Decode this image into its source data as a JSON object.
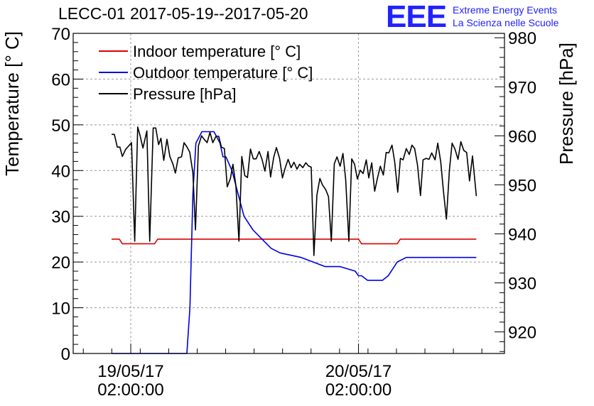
{
  "brand": {
    "logo": "EEE",
    "line1": "Extreme Energy Events",
    "line2": "La Scienza nelle Scuole"
  },
  "colors": {
    "indoor": "#dd0000",
    "outdoor": "#0000dd",
    "pressure": "#000000",
    "brand": "#2222ff",
    "grid": "#999999"
  },
  "chart_data": {
    "type": "line",
    "title": "LECC-01 2017-05-19--2017-05-20",
    "ylabel": "Temperature [° C]",
    "y2label": "Pressure [hPa]",
    "ylim": [
      0,
      70
    ],
    "y2lim": [
      915.6,
      980.9
    ],
    "y_ticks": [
      0,
      10,
      20,
      30,
      40,
      50,
      60,
      70
    ],
    "y2_ticks": [
      920,
      930,
      940,
      950,
      960,
      970,
      980
    ],
    "xlim": [
      "2017-05-18 19:56",
      "2017-05-20 17:23"
    ],
    "x_ticks": [
      {
        "t": "2017-05-19 02:00",
        "line1": "19/05/17",
        "line2": "02:00:00"
      },
      {
        "t": "2017-05-20 02:00",
        "line1": "20/05/17",
        "line2": "02:00:00"
      }
    ],
    "grid": true,
    "legend": "top-left",
    "series": [
      {
        "name": "Indoor temperature [° C]",
        "axis": "left",
        "color": "#dd0000",
        "x": [
          "2017-05-18 23:59",
          "2017-05-19 00:48",
          "2017-05-19 01:07",
          "2017-05-19 04:31",
          "2017-05-19 04:50",
          "2017-05-20 02:00",
          "2017-05-20 02:19",
          "2017-05-20 06:05",
          "2017-05-20 06:24",
          "2017-05-20 14:25"
        ],
        "y": [
          25,
          25,
          24,
          24,
          25,
          25,
          24,
          24,
          25,
          25
        ]
      },
      {
        "name": "Outdoor temperature [° C]",
        "axis": "left",
        "color": "#0000dd",
        "x": [
          "2017-05-18 23:59",
          "2017-05-19 07:55",
          "2017-05-19 08:14",
          "2017-05-19 08:33",
          "2017-05-19 08:52",
          "2017-05-19 09:30",
          "2017-05-19 10:08",
          "2017-05-19 10:46",
          "2017-05-19 11:24",
          "2017-05-19 11:43",
          "2017-05-19 12:02",
          "2017-05-19 12:40",
          "2017-05-19 13:18",
          "2017-05-19 13:56",
          "2017-05-19 14:53",
          "2017-05-19 15:50",
          "2017-05-19 16:47",
          "2017-05-19 17:44",
          "2017-05-19 19:57",
          "2017-05-19 21:13",
          "2017-05-19 22:29",
          "2017-05-20 00:04",
          "2017-05-20 01:39",
          "2017-05-20 02:00",
          "2017-05-20 02:19",
          "2017-05-20 02:57",
          "2017-05-20 04:32",
          "2017-05-20 05:08",
          "2017-05-20 05:46",
          "2017-05-20 06:05",
          "2017-05-20 07:02",
          "2017-05-20 14:25"
        ],
        "y": [
          0,
          0,
          10,
          35,
          46,
          48.5,
          48.5,
          48.5,
          46,
          43,
          43,
          40,
          35,
          30,
          27,
          25,
          23,
          22,
          21,
          20,
          19,
          19,
          18,
          17,
          17,
          16,
          16,
          17,
          19,
          20,
          21,
          21
        ]
      },
      {
        "name": "Pressure [hPa]",
        "axis": "right",
        "color": "#000000",
        "x": [
          "2017-05-18 23:59",
          "2017-05-19 00:16",
          "2017-05-19 00:35",
          "2017-05-19 00:51",
          "2017-05-19 01:07",
          "2017-05-19 01:27",
          "2017-05-19 02:05",
          "2017-05-19 02:25",
          "2017-05-19 02:44",
          "2017-05-19 02:59",
          "2017-05-19 03:17",
          "2017-05-19 03:42",
          "2017-05-19 04:00",
          "2017-05-19 04:22",
          "2017-05-19 04:38",
          "2017-05-19 04:56",
          "2017-05-19 05:11",
          "2017-05-19 05:29",
          "2017-05-19 05:49",
          "2017-05-19 06:07",
          "2017-05-19 06:27",
          "2017-05-19 06:42",
          "2017-05-19 07:00",
          "2017-05-19 07:21",
          "2017-05-19 07:37",
          "2017-05-19 07:54",
          "2017-05-19 08:13",
          "2017-05-19 08:33",
          "2017-05-19 08:49",
          "2017-05-19 09:08",
          "2017-05-19 09:28",
          "2017-05-19 09:44",
          "2017-05-19 10:03",
          "2017-05-19 10:21",
          "2017-05-19 10:39",
          "2017-05-19 10:59",
          "2017-05-19 11:16",
          "2017-05-19 11:33",
          "2017-05-19 11:52",
          "2017-05-19 12:10",
          "2017-05-19 12:30",
          "2017-05-19 12:46",
          "2017-05-19 13:05",
          "2017-05-19 13:24",
          "2017-05-19 13:42",
          "2017-05-19 14:01",
          "2017-05-19 14:18",
          "2017-05-19 14:37",
          "2017-05-19 14:55",
          "2017-05-19 15:13",
          "2017-05-19 15:32",
          "2017-05-19 15:50",
          "2017-05-19 16:08",
          "2017-05-19 16:28",
          "2017-05-19 16:44",
          "2017-05-19 17:04",
          "2017-05-19 17:21",
          "2017-05-19 17:41",
          "2017-05-19 17:59",
          "2017-05-19 18:17",
          "2017-05-19 18:35",
          "2017-05-19 18:54",
          "2017-05-19 19:12",
          "2017-05-19 19:31",
          "2017-05-19 19:48",
          "2017-05-19 20:08",
          "2017-05-19 20:27",
          "2017-05-19 20:42",
          "2017-05-19 21:01",
          "2017-05-19 21:18",
          "2017-05-19 21:37",
          "2017-05-19 21:56",
          "2017-05-19 22:12",
          "2017-05-19 22:33",
          "2017-05-19 22:50",
          "2017-05-19 23:08",
          "2017-05-19 23:27",
          "2017-05-19 23:44",
          "2017-05-20 00:04",
          "2017-05-20 00:22",
          "2017-05-20 00:39",
          "2017-05-20 00:59",
          "2017-05-20 01:17",
          "2017-05-20 01:35",
          "2017-05-20 01:53",
          "2017-05-20 02:11",
          "2017-05-20 02:29",
          "2017-05-20 02:49",
          "2017-05-20 03:05",
          "2017-05-20 03:24",
          "2017-05-20 03:42",
          "2017-05-20 04:00",
          "2017-05-20 04:18",
          "2017-05-20 04:37",
          "2017-05-20 04:55",
          "2017-05-20 05:11",
          "2017-05-20 05:32",
          "2017-05-20 05:49",
          "2017-05-20 06:08",
          "2017-05-20 06:25",
          "2017-05-20 06:42",
          "2017-05-20 07:02",
          "2017-05-20 07:21",
          "2017-05-20 07:38",
          "2017-05-20 07:55",
          "2017-05-20 08:13",
          "2017-05-20 08:32",
          "2017-05-20 08:48",
          "2017-05-20 09:08",
          "2017-05-20 09:26",
          "2017-05-20 09:43",
          "2017-05-20 10:04",
          "2017-05-20 10:21",
          "2017-05-20 10:40",
          "2017-05-20 10:57",
          "2017-05-20 11:16",
          "2017-05-20 11:35",
          "2017-05-20 11:52",
          "2017-05-20 12:10",
          "2017-05-20 12:29",
          "2017-05-20 12:47",
          "2017-05-20 13:06",
          "2017-05-20 13:24",
          "2017-05-20 13:42",
          "2017-05-20 14:01",
          "2017-05-20 14:25"
        ],
        "y": [
          960.3,
          960.3,
          957.7,
          957.7,
          955.8,
          957.2,
          958.6,
          938.5,
          961.8,
          960.0,
          957.5,
          961.0,
          938.5,
          961.6,
          961.6,
          958.2,
          959.5,
          955.0,
          959.3,
          955.8,
          954.2,
          952.4,
          955.5,
          955.7,
          958.6,
          957.8,
          956.7,
          952.4,
          940.8,
          958.0,
          960.0,
          959.3,
          958.6,
          960.7,
          958.6,
          959.9,
          959.9,
          957.7,
          957.4,
          949.6,
          951.3,
          954.2,
          949.8,
          938.5,
          955.8,
          951.9,
          951.5,
          957.3,
          955.3,
          955.3,
          956.8,
          955.2,
          952.8,
          956.8,
          951.6,
          955.6,
          957.6,
          955.4,
          951.4,
          953.5,
          955.2,
          953.5,
          954.6,
          953.2,
          954.2,
          953.5,
          954.5,
          953.9,
          953.6,
          935.6,
          947.9,
          951.3,
          950.0,
          949.0,
          947.6,
          938.5,
          954.3,
          955.7,
          953.8,
          956.4,
          951.1,
          938.5,
          955.3,
          954.2,
          951.2,
          953.0,
          952.3,
          955.1,
          951.4,
          954.5,
          948.7,
          951.4,
          953.8,
          952.0,
          956.6,
          956.5,
          958.1,
          954.7,
          948.5,
          955.4,
          955.1,
          957.4,
          956.2,
          958.1,
          957.4,
          954.0,
          947.8,
          955.1,
          955.4,
          955.2,
          956.5,
          955.1,
          958.5,
          954.7,
          948.7,
          943.0,
          953.0,
          958.5,
          957.3,
          955.2,
          958.8,
          957.0,
          956.6,
          950.8,
          955.9,
          947.7
        ],
        "note": ""
      }
    ]
  }
}
